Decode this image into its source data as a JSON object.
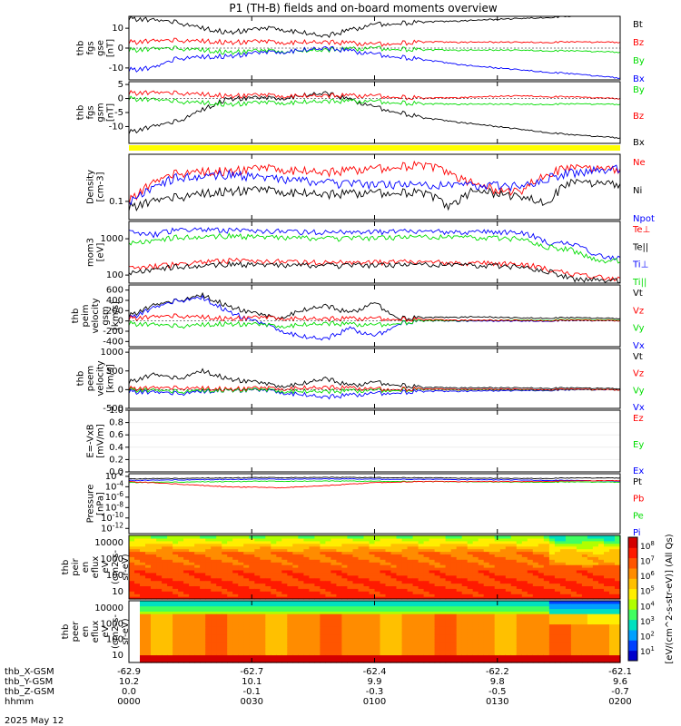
{
  "title": "P1 (TH-B) fields and on-board moments overview",
  "date_label": "2025 May 12",
  "colorbar_label": "[eV/(cm^2-s-str-eV)] (All Qs)",
  "colorbar_ticks": [
    "10^8",
    "10^7",
    "10^6",
    "10^5",
    "10^4",
    "10^3",
    "10^2",
    "10^1"
  ],
  "colors": {
    "black": "#000000",
    "red": "#ff0000",
    "green": "#00dd00",
    "blue": "#0000ff",
    "yellow": "#ffff00"
  },
  "chart_data": [
    {
      "type": "line",
      "name": "fgs_gse",
      "ylabel": [
        "thb",
        "fgs",
        "gse",
        "[nT]"
      ],
      "yticks": [
        "10",
        "0",
        "-10"
      ],
      "ylim": [
        -16,
        16
      ],
      "legend": [
        {
          "label": "Bt",
          "color": "#000000"
        },
        {
          "label": "Bz",
          "color": "#ff0000"
        },
        {
          "label": "By",
          "color": "#00dd00"
        },
        {
          "label": "Bx",
          "color": "#0000ff"
        }
      ],
      "series": [
        {
          "name": "Bt",
          "color": "#000000",
          "x": [
            0,
            0.1,
            0.15,
            0.2,
            0.3,
            0.4,
            0.5,
            0.6,
            0.7,
            0.8,
            0.9,
            1.0
          ],
          "y": [
            15,
            13,
            10,
            8,
            10,
            6,
            12,
            13,
            14,
            15,
            16,
            17
          ]
        },
        {
          "name": "Bz",
          "color": "#ff0000",
          "x": [
            0,
            0.1,
            0.2,
            0.4,
            0.5,
            0.6,
            0.7,
            0.8,
            0.9,
            1.0
          ],
          "y": [
            3,
            4,
            3,
            3,
            2,
            3,
            3,
            3,
            3,
            3
          ]
        },
        {
          "name": "By",
          "color": "#00dd00",
          "x": [
            0,
            0.1,
            0.2,
            0.4,
            0.5,
            0.6,
            0.8,
            1.0
          ],
          "y": [
            -1,
            0,
            -2,
            -1,
            0,
            -1,
            -1,
            -2
          ]
        },
        {
          "name": "Bx",
          "color": "#0000ff",
          "x": [
            0,
            0.05,
            0.1,
            0.2,
            0.3,
            0.4,
            0.5,
            0.6,
            0.7,
            0.8,
            0.9,
            1.0
          ],
          "y": [
            -11,
            -10,
            -5,
            -4,
            -2,
            0,
            -3,
            -6,
            -9,
            -11,
            -13,
            -15
          ]
        }
      ]
    },
    {
      "type": "line",
      "name": "fgs_gsm",
      "ylabel": [
        "thb",
        "fgs",
        "gsm",
        "[nT]"
      ],
      "yticks": [
        "5",
        "0",
        "-5",
        "-10"
      ],
      "ylim": [
        -16,
        6
      ],
      "legend": [
        {
          "label": "By",
          "color": "#00dd00"
        },
        {
          "label": "Bz",
          "color": "#ff0000"
        },
        {
          "label": "Bx",
          "color": "#000000"
        }
      ],
      "series": [
        {
          "name": "Bx",
          "color": "#000000",
          "x": [
            0,
            0.1,
            0.2,
            0.3,
            0.4,
            0.5,
            0.6,
            0.7,
            0.8,
            0.9,
            1.0
          ],
          "y": [
            -12,
            -8,
            0,
            0,
            2,
            -3,
            -7,
            -9,
            -11,
            -13,
            -14
          ]
        },
        {
          "name": "Bz",
          "color": "#ff0000",
          "x": [
            0,
            0.1,
            0.2,
            0.4,
            0.5,
            0.6,
            0.8,
            1.0
          ],
          "y": [
            2,
            2,
            1,
            1,
            1,
            0,
            1,
            0
          ]
        },
        {
          "name": "By",
          "color": "#00dd00",
          "x": [
            0,
            0.1,
            0.2,
            0.4,
            0.5,
            0.6,
            0.8,
            1.0
          ],
          "y": [
            0,
            -1,
            -2,
            -1,
            -1,
            -2,
            -2,
            -2
          ]
        }
      ]
    },
    {
      "type": "line",
      "name": "density",
      "ylabel": [
        "Density",
        "[cm-3]"
      ],
      "yticks": [
        "0.1"
      ],
      "ylim": [
        0.05,
        0.6
      ],
      "log": true,
      "legend": [
        {
          "label": "Ne",
          "color": "#ff0000"
        },
        {
          "label": "Ni",
          "color": "#000000"
        },
        {
          "label": "Npot",
          "color": "#0000ff"
        }
      ],
      "series": [
        {
          "name": "Ne",
          "color": "#ff0000",
          "x": [
            0,
            0.05,
            0.1,
            0.2,
            0.3,
            0.4,
            0.5,
            0.6,
            0.7,
            0.75,
            0.8,
            0.85,
            0.9,
            1.0
          ],
          "y": [
            0.1,
            0.2,
            0.3,
            0.32,
            0.35,
            0.3,
            0.35,
            0.4,
            0.2,
            0.15,
            0.15,
            0.3,
            0.35,
            0.35
          ]
        },
        {
          "name": "Ni",
          "color": "#000000",
          "x": [
            0,
            0.1,
            0.2,
            0.3,
            0.4,
            0.5,
            0.6,
            0.65,
            0.7,
            0.8,
            0.85,
            0.9,
            1.0
          ],
          "y": [
            0.08,
            0.12,
            0.15,
            0.15,
            0.13,
            0.14,
            0.14,
            0.08,
            0.15,
            0.12,
            0.1,
            0.2,
            0.2
          ]
        },
        {
          "name": "Npot",
          "color": "#0000ff",
          "x": [
            0,
            0.1,
            0.2,
            0.4,
            0.6,
            0.8,
            0.9,
            1.0
          ],
          "y": [
            0.1,
            0.25,
            0.28,
            0.2,
            0.18,
            0.18,
            0.3,
            0.35
          ]
        }
      ]
    },
    {
      "type": "line",
      "name": "temperature",
      "ylabel": [
        "mom3",
        "[eV]"
      ],
      "yticks": [
        "1000",
        "100"
      ],
      "ylim": [
        60,
        3000
      ],
      "log": true,
      "legend": [
        {
          "label": "Te⊥",
          "color": "#ff0000"
        },
        {
          "label": "Te||",
          "color": "#000000"
        },
        {
          "label": "Ti⊥",
          "color": "#0000ff"
        },
        {
          "label": "Ti||",
          "color": "#00dd00"
        }
      ],
      "series": [
        {
          "name": "Ti⊥",
          "color": "#0000ff",
          "x": [
            0,
            0.05,
            0.1,
            0.2,
            0.4,
            0.6,
            0.8,
            0.85,
            0.9,
            0.95,
            1.0
          ],
          "y": [
            1500,
            1300,
            1800,
            1700,
            1500,
            1600,
            1500,
            800,
            700,
            350,
            300
          ]
        },
        {
          "name": "Ti||",
          "color": "#00dd00",
          "x": [
            0,
            0.05,
            0.1,
            0.2,
            0.4,
            0.6,
            0.8,
            0.85,
            0.9,
            0.95,
            1.0
          ],
          "y": [
            800,
            900,
            1100,
            1200,
            1000,
            1100,
            1000,
            600,
            500,
            250,
            250
          ]
        },
        {
          "name": "Te⊥",
          "color": "#ff0000",
          "x": [
            0,
            0.1,
            0.2,
            0.4,
            0.6,
            0.8,
            0.85,
            0.9,
            1.0
          ],
          "y": [
            150,
            200,
            250,
            220,
            230,
            200,
            150,
            100,
            80
          ]
        },
        {
          "name": "Te||",
          "color": "#000000",
          "x": [
            0,
            0.1,
            0.2,
            0.4,
            0.6,
            0.8,
            0.85,
            0.9,
            1.0
          ],
          "y": [
            120,
            170,
            200,
            180,
            190,
            170,
            130,
            80,
            70
          ]
        }
      ]
    },
    {
      "type": "line",
      "name": "peim_velocity",
      "ylabel": [
        "thb",
        "peim",
        "velocity",
        "gsm",
        "[km/s]"
      ],
      "yticks": [
        "600",
        "400",
        "200",
        "0",
        "-200",
        "-400"
      ],
      "ylim": [
        -500,
        700
      ],
      "legend": [
        {
          "label": "Vt",
          "color": "#000000"
        },
        {
          "label": "Vz",
          "color": "#ff0000"
        },
        {
          "label": "Vy",
          "color": "#00dd00"
        },
        {
          "label": "Vx",
          "color": "#0000ff"
        }
      ],
      "series": [
        {
          "name": "Vt",
          "color": "#000000",
          "x": [
            0,
            0.05,
            0.1,
            0.15,
            0.2,
            0.25,
            0.3,
            0.35,
            0.4,
            0.45,
            0.5,
            0.55,
            0.6,
            0.7,
            0.8,
            0.9,
            1.0
          ],
          "y": [
            100,
            300,
            400,
            500,
            300,
            150,
            50,
            200,
            300,
            150,
            350,
            50,
            60,
            80,
            60,
            60,
            50
          ]
        },
        {
          "name": "Vx",
          "color": "#0000ff",
          "x": [
            0,
            0.05,
            0.1,
            0.15,
            0.2,
            0.25,
            0.3,
            0.35,
            0.4,
            0.45,
            0.5,
            0.55,
            0.6,
            0.8,
            1.0
          ],
          "y": [
            50,
            250,
            400,
            450,
            200,
            0,
            -150,
            -300,
            -350,
            -150,
            -300,
            -50,
            0,
            0,
            10
          ]
        },
        {
          "name": "Vy",
          "color": "#00dd00",
          "x": [
            0,
            0.1,
            0.2,
            0.3,
            0.4,
            0.5,
            0.6,
            0.8,
            1.0
          ],
          "y": [
            -50,
            -100,
            -50,
            -100,
            -50,
            -80,
            0,
            20,
            20
          ]
        },
        {
          "name": "Vz",
          "color": "#ff0000",
          "x": [
            0,
            0.1,
            0.2,
            0.3,
            0.4,
            0.5,
            0.6,
            0.8,
            1.0
          ],
          "y": [
            50,
            100,
            50,
            60,
            40,
            50,
            20,
            10,
            10
          ]
        }
      ]
    },
    {
      "type": "line",
      "name": "peem_velocity",
      "ylabel": [
        "thb",
        "peem",
        "velocity",
        "[km/s]"
      ],
      "yticks": [
        "1000",
        "500",
        "0",
        "-500"
      ],
      "ylim": [
        -500,
        1100
      ],
      "legend": [
        {
          "label": "Vt",
          "color": "#000000"
        },
        {
          "label": "Vz",
          "color": "#ff0000"
        },
        {
          "label": "Vy",
          "color": "#00dd00"
        },
        {
          "label": "Vx",
          "color": "#0000ff"
        }
      ],
      "series": [
        {
          "name": "Vt",
          "color": "#000000",
          "x": [
            0,
            0.05,
            0.1,
            0.15,
            0.2,
            0.25,
            0.3,
            0.35,
            0.4,
            0.45,
            0.5,
            0.6,
            0.8,
            1.0
          ],
          "y": [
            200,
            400,
            300,
            500,
            300,
            200,
            100,
            150,
            300,
            100,
            200,
            50,
            50,
            30
          ]
        },
        {
          "name": "Vx",
          "color": "#0000ff",
          "x": [
            0,
            0.1,
            0.2,
            0.3,
            0.4,
            0.5,
            0.6,
            0.8,
            1.0
          ],
          "y": [
            -50,
            -100,
            0,
            -50,
            -200,
            -100,
            -50,
            -20,
            0
          ]
        },
        {
          "name": "Vy",
          "color": "#00dd00",
          "x": [
            0,
            0.1,
            0.2,
            0.3,
            0.4,
            0.5,
            0.6,
            0.8,
            1.0
          ],
          "y": [
            0,
            -50,
            0,
            -30,
            -50,
            -20,
            0,
            0,
            0
          ]
        },
        {
          "name": "Vz",
          "color": "#ff0000",
          "x": [
            0,
            0.1,
            0.2,
            0.3,
            0.4,
            0.5,
            0.6,
            0.8,
            1.0
          ],
          "y": [
            30,
            50,
            20,
            30,
            60,
            20,
            10,
            10,
            0
          ]
        }
      ]
    },
    {
      "type": "line",
      "name": "efield",
      "ylabel": [
        "E=-VxB",
        "[mV/m]"
      ],
      "yticks": [
        "1.0",
        "0.8",
        "0.6",
        "0.4",
        "0.2",
        "0.0"
      ],
      "ylim": [
        0,
        1
      ],
      "legend": [
        {
          "label": "Ez",
          "color": "#ff0000"
        },
        {
          "label": "Ey",
          "color": "#00dd00"
        },
        {
          "label": "Ex",
          "color": "#0000ff"
        }
      ],
      "series": []
    },
    {
      "type": "line",
      "name": "pressure",
      "ylabel": [
        "Pressure",
        "[nPa]"
      ],
      "yticks": [
        "10^-2",
        "10^-4",
        "10^-6",
        "10^-8",
        "10^-10",
        "10^-12"
      ],
      "ylim": [
        -13,
        -1.5
      ],
      "legend": [
        {
          "label": "Pt",
          "color": "#000000"
        },
        {
          "label": "Pb",
          "color": "#ff0000"
        },
        {
          "label": "Pe",
          "color": "#00dd00"
        },
        {
          "label": "Pi",
          "color": "#0000ff"
        }
      ],
      "series": [
        {
          "name": "Pt",
          "color": "#000000",
          "x": [
            0,
            0.2,
            0.4,
            0.6,
            0.8,
            1.0
          ],
          "y": [
            -2.5,
            -2.3,
            -2.2,
            -2.3,
            -2.4,
            -2.3
          ]
        },
        {
          "name": "Pi",
          "color": "#0000ff",
          "x": [
            0,
            0.2,
            0.4,
            0.6,
            0.8,
            0.9,
            1.0
          ],
          "y": [
            -2.8,
            -2.6,
            -2.5,
            -2.6,
            -2.7,
            -2.8,
            -2.9
          ]
        },
        {
          "name": "Pe",
          "color": "#00dd00",
          "x": [
            0,
            0.2,
            0.4,
            0.6,
            0.8,
            1.0
          ],
          "y": [
            -3.2,
            -3.0,
            -2.9,
            -3.0,
            -3.1,
            -3.1
          ]
        },
        {
          "name": "Pb",
          "color": "#ff0000",
          "x": [
            0,
            0.1,
            0.2,
            0.3,
            0.4,
            0.5,
            0.6,
            0.8,
            1.0
          ],
          "y": [
            -3,
            -3.5,
            -4,
            -4.2,
            -3.8,
            -3.2,
            -3,
            -3,
            -2.8
          ]
        }
      ]
    },
    {
      "type": "heatmap",
      "name": "peir_eflux",
      "ylabel": [
        "thb",
        "peir",
        "en",
        "eflux",
        "eV",
        "(cm2-s-",
        "sr-eV)"
      ],
      "yticks": [
        "10000",
        "1000",
        "100",
        "10"
      ]
    },
    {
      "type": "heatmap",
      "name": "peer_eflux",
      "ylabel": [
        "thb",
        "peer",
        "en",
        "eflux",
        "eV",
        "(cm2-s-",
        "sr-eV)"
      ],
      "yticks": [
        "10000",
        "1000",
        "100",
        "10"
      ]
    }
  ],
  "xaxis": {
    "row_labels": [
      "thb_X-GSM",
      "thb_Y-GSM",
      "thb_Z-GSM",
      "hhmm"
    ],
    "ticks": [
      {
        "vals": [
          "-62.9",
          "10.2",
          "0.0",
          "0000"
        ]
      },
      {
        "vals": [
          "-62.7",
          "10.1",
          "-0.1",
          "0030"
        ]
      },
      {
        "vals": [
          "-62.4",
          "9.9",
          "-0.3",
          "0100"
        ]
      },
      {
        "vals": [
          "-62.2",
          "9.8",
          "-0.5",
          "0130"
        ]
      },
      {
        "vals": [
          "-62.1",
          "9.6",
          "-0.7",
          "0200"
        ]
      }
    ]
  }
}
